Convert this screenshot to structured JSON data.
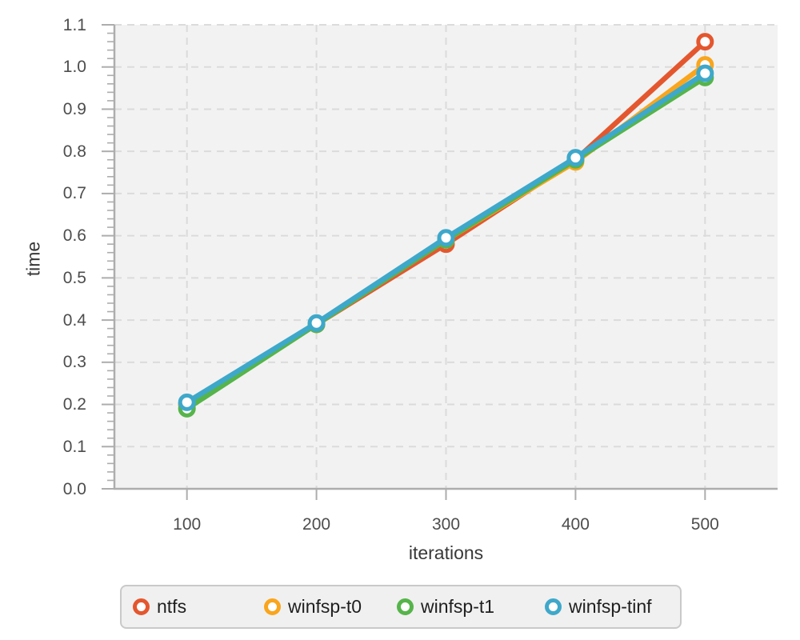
{
  "chart_data": {
    "type": "line",
    "title": "",
    "xlabel": "iterations",
    "ylabel": "time",
    "x": [
      100,
      200,
      300,
      400,
      500
    ],
    "xticks": [
      "100",
      "200",
      "300",
      "400",
      "500"
    ],
    "yticks": [
      "0.0",
      "0.1",
      "0.2",
      "0.3",
      "0.4",
      "0.5",
      "0.6",
      "0.7",
      "0.8",
      "0.9",
      "1.0",
      "1.1"
    ],
    "xlim": [
      44,
      556
    ],
    "ylim": [
      0,
      1.1
    ],
    "grid": true,
    "grid_style": "dashed",
    "minor_tick_step_y": 0.02,
    "legend_position": "bottom",
    "plot_bg_color": "#f2f2f2",
    "gridline_color": "#dbdbdb",
    "axis_color": "#adadad",
    "series": [
      {
        "name": "ntfs",
        "color": "#e4572e",
        "values": [
          0.2,
          0.39,
          0.58,
          0.78,
          1.06
        ]
      },
      {
        "name": "winfsp-t0",
        "color": "#f9a51d",
        "values": [
          0.2,
          0.39,
          0.59,
          0.775,
          1.005
        ]
      },
      {
        "name": "winfsp-t1",
        "color": "#56b44a",
        "values": [
          0.19,
          0.39,
          0.59,
          0.78,
          0.975
        ]
      },
      {
        "name": "winfsp-tinf",
        "color": "#3ea8ca",
        "values": [
          0.205,
          0.393,
          0.595,
          0.785,
          0.985
        ]
      }
    ]
  },
  "legend": {
    "items": [
      "ntfs",
      "winfsp-t0",
      "winfsp-t1",
      "winfsp-tinf"
    ]
  }
}
